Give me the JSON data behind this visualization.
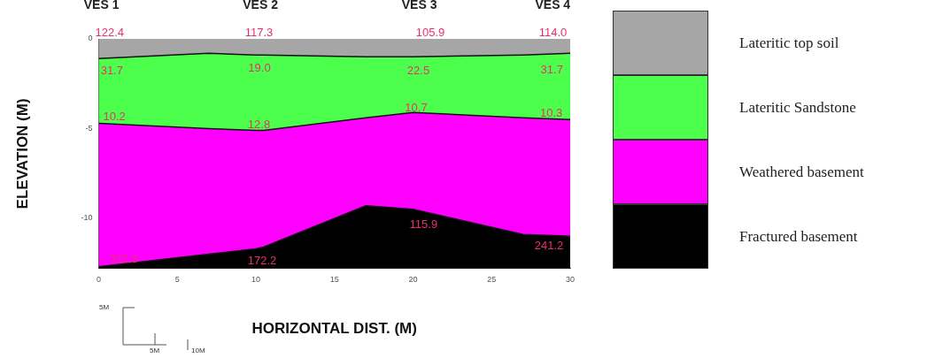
{
  "chart_data": {
    "type": "area",
    "stacked": true,
    "xlabel": "HORIZONTAL DIST. (M)",
    "ylabel": "ELEVATION (M)",
    "x": [
      0,
      7,
      10,
      10.5,
      17,
      20,
      27,
      30
    ],
    "series": [
      {
        "name": "Lateritic top soil",
        "color": "#a6a6a6",
        "values": [
          -1.1,
          -0.8,
          -0.9,
          -0.9,
          -1.0,
          -1.0,
          -0.9,
          -0.8
        ]
      },
      {
        "name": "Lateritic Sandstone",
        "color": "#4dff4d",
        "values": [
          -3.6,
          -4.2,
          -4.2,
          -4.2,
          -3.4,
          -3.1,
          -3.5,
          -3.7
        ]
      },
      {
        "name": "Weathered basement",
        "color": "#ff00ff",
        "values": [
          -8.0,
          -7.0,
          -6.6,
          -6.5,
          -4.9,
          -5.4,
          -6.5,
          -6.5
        ]
      },
      {
        "name": "Fractured basement",
        "color": "#000000",
        "values": [
          -0.1,
          -0.8,
          -1.1,
          -1.2,
          -3.5,
          -3.3,
          -1.9,
          -1.8
        ]
      }
    ],
    "xlim": [
      0,
      30
    ],
    "xticks": [
      0,
      5,
      10,
      15,
      20,
      25,
      30
    ],
    "ylim": [
      -12.8,
      0
    ],
    "yticks": [
      0,
      -5,
      -10
    ],
    "legend": "right",
    "annotations": [
      {
        "text": "122.4",
        "x": 0.7,
        "y": 0
      },
      {
        "text": "117.3",
        "x": 10.2,
        "y": 0
      },
      {
        "text": "105.9",
        "x": 21.1,
        "y": 0
      },
      {
        "text": "114.0",
        "x": 28.9,
        "y": 0
      },
      {
        "text": "10.2",
        "x": 1.0,
        "y": -4.7
      },
      {
        "text": "12.8",
        "x": 10.2,
        "y": -5.1
      },
      {
        "text": "10.7",
        "x": 20.2,
        "y": -4.2
      },
      {
        "text": "10.3",
        "x": 28.8,
        "y": -4.5
      },
      {
        "text": "322.8",
        "x": 1.6,
        "y": -12.6
      },
      {
        "text": "172.2",
        "x": 10.4,
        "y": -12.7
      },
      "VES 1",
      "VES 2",
      "VES 3",
      "VES 4",
      "5M",
      "5M",
      "10M",
      "31.7",
      "19.0",
      "22.5",
      "31.7",
      "115.9",
      "241.2"
    ]
  }
}
